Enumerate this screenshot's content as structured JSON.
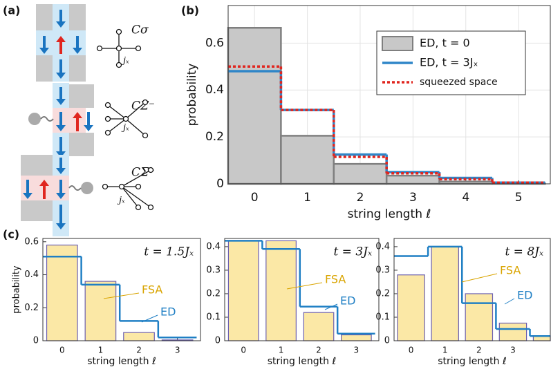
{
  "panel_labels": [
    "(a)",
    "(b)",
    "(c)"
  ],
  "diagram": {
    "symbols": [
      "Cσ",
      "CΣ⁻",
      "CΣ⁺"
    ],
    "site": "jₓ"
  },
  "chart_data": [
    {
      "type": "bar",
      "x": [
        0,
        1,
        2,
        3,
        4,
        5
      ],
      "xlim": [
        -0.5,
        5.6
      ],
      "xticks": [
        0,
        1,
        2,
        3,
        4,
        5
      ],
      "ylim": [
        0,
        0.76
      ],
      "yticks": [
        0,
        0.2,
        0.4,
        0.6
      ],
      "grid": true,
      "legend": "upper right",
      "xlabel": "string length ℓ",
      "ylabel": "probability",
      "series": [
        {
          "name": "ED,  t = 0",
          "style": "bar",
          "color": "#c8c8c8",
          "values": [
            0.665,
            0.205,
            0.085,
            0.035,
            0.01,
            0.002
          ]
        },
        {
          "name": "ED,  t = 3Jₓ",
          "style": "step",
          "color": "#2f86c8",
          "values": [
            0.48,
            0.315,
            0.125,
            0.05,
            0.025,
            0.005
          ]
        },
        {
          "name": "squeezed space",
          "style": "dotted",
          "color": "#e0261f",
          "values": [
            0.5,
            0.315,
            0.115,
            0.045,
            0.02,
            0.005
          ]
        }
      ]
    },
    {
      "type": "bar",
      "title": "t = 1.5Jₓ",
      "x": [
        0,
        1,
        2,
        3
      ],
      "xlim": [
        -0.5,
        3.6
      ],
      "xticks": [
        0,
        1,
        2,
        3
      ],
      "ylim": [
        0,
        0.62
      ],
      "yticks": [
        0,
        0.2,
        0.4,
        0.6
      ],
      "xlabel": "string length ℓ",
      "ylabel": "probability",
      "series": [
        {
          "name": "FSA",
          "style": "bar",
          "color": "#fbe8a6",
          "values": [
            0.58,
            0.36,
            0.05,
            0.005
          ]
        },
        {
          "name": "ED",
          "style": "step",
          "color": "#1f7fc4",
          "values": [
            0.51,
            0.34,
            0.12,
            0.02
          ]
        }
      ]
    },
    {
      "type": "bar",
      "title": "t = 3Jₓ",
      "x": [
        0,
        1,
        2,
        3
      ],
      "xlim": [
        -0.5,
        3.6
      ],
      "xticks": [
        0,
        1,
        2,
        3
      ],
      "ylim": [
        0,
        0.435
      ],
      "yticks": [
        0,
        0.1,
        0.2,
        0.3,
        0.4
      ],
      "xlabel": "string length ℓ",
      "series": [
        {
          "name": "FSA",
          "style": "bar",
          "color": "#fbe8a6",
          "values": [
            0.425,
            0.425,
            0.12,
            0.025
          ]
        },
        {
          "name": "ED",
          "style": "step",
          "color": "#1f7fc4",
          "values": [
            0.425,
            0.39,
            0.145,
            0.03
          ]
        }
      ]
    },
    {
      "type": "bar",
      "title": "t = 8Jₓ",
      "x": [
        0,
        1,
        2,
        3,
        4
      ],
      "xlim": [
        -0.5,
        4.1
      ],
      "xticks": [
        0,
        1,
        2,
        3
      ],
      "ylim": [
        0,
        0.435
      ],
      "yticks": [
        0,
        0.1,
        0.2,
        0.3,
        0.4
      ],
      "xlabel": "string length ℓ",
      "series": [
        {
          "name": "FSA",
          "style": "bar",
          "color": "#fbe8a6",
          "values": [
            0.28,
            0.4,
            0.2,
            0.075,
            0.02
          ]
        },
        {
          "name": "ED",
          "style": "step",
          "color": "#1f7fc4",
          "values": [
            0.36,
            0.4,
            0.16,
            0.05,
            0.02
          ]
        }
      ]
    }
  ]
}
